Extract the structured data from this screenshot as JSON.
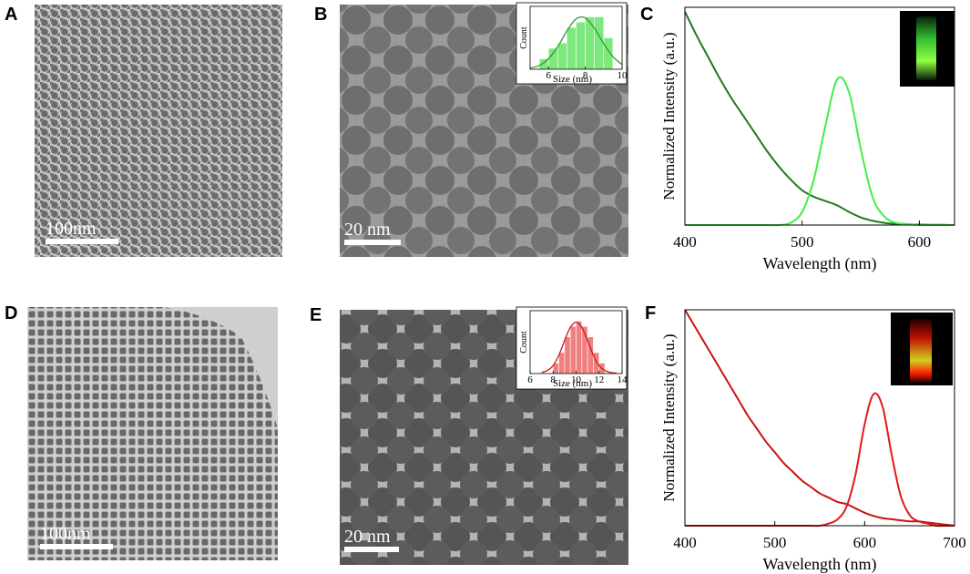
{
  "panels": [
    {
      "label": "A",
      "scale_bar": "100nm"
    },
    {
      "label": "B",
      "scale_bar": "20 nm"
    },
    {
      "label": "C"
    },
    {
      "label": "D",
      "scale_bar": "100nm"
    },
    {
      "label": "E",
      "scale_bar": "20 nm"
    },
    {
      "label": "F"
    }
  ],
  "chart_data": [
    {
      "type": "histogram",
      "xlabel": "Size (nm)",
      "ylabel": "Count",
      "bins": [
        5.5,
        6,
        6.5,
        7,
        7.5,
        8,
        8.5,
        9,
        9.5
      ],
      "values": [
        2,
        4,
        5,
        8,
        9,
        10,
        10,
        6
      ],
      "color": "#7de87d",
      "xlim": [
        5,
        10
      ],
      "xticks": [
        6,
        8,
        10
      ],
      "ylim": [
        0,
        12
      ],
      "fit": {
        "color": "#2e9e2e",
        "x": [
          5,
          5.5,
          6,
          6.5,
          7,
          7.5,
          8,
          8.5,
          9,
          9.5,
          10
        ],
        "values": [
          0.2,
          0.7,
          2,
          4.3,
          7.3,
          9.6,
          9.8,
          7.8,
          4.9,
          2.4,
          0.9
        ]
      }
    },
    {
      "type": "line",
      "xlabel": "Wavelength (nm)",
      "ylabel": "Normalized Intensity (a.u.)",
      "x": [
        400,
        410,
        420,
        430,
        440,
        450,
        460,
        470,
        480,
        490,
        500,
        510,
        520,
        530,
        540,
        550,
        560,
        570,
        580,
        590,
        600,
        610,
        620,
        630
      ],
      "series": [
        {
          "color": "#1f7a1f",
          "values": [
            0.98,
            0.87,
            0.77,
            0.67,
            0.58,
            0.5,
            0.42,
            0.34,
            0.27,
            0.21,
            0.16,
            0.13,
            0.11,
            0.09,
            0.06,
            0.035,
            0.02,
            0.01,
            0.005,
            0.003,
            0.002,
            0.001,
            0.001,
            0
          ]
        },
        {
          "color": "#44ee44",
          "values": [
            0,
            0,
            0,
            0,
            0,
            0,
            0,
            0,
            0,
            0.01,
            0.06,
            0.21,
            0.46,
            0.67,
            0.61,
            0.35,
            0.13,
            0.04,
            0.01,
            0.005,
            0,
            0,
            0,
            0
          ]
        }
      ],
      "xlim": [
        400,
        630
      ],
      "xticks": [
        400,
        500,
        600
      ],
      "ylim": [
        0,
        1
      ]
    },
    {
      "type": "histogram",
      "xlabel": "Size (nm)",
      "ylabel": "Count",
      "bins": [
        8,
        8.5,
        9,
        9.5,
        10,
        10.5,
        11,
        11.5,
        12,
        12.5
      ],
      "values": [
        2,
        4,
        7,
        9,
        10,
        9,
        7,
        4,
        2
      ],
      "color": "#f08080",
      "xlim": [
        6,
        14
      ],
      "xticks": [
        6,
        8,
        10,
        12,
        14
      ],
      "ylim": [
        0,
        12
      ],
      "fit": {
        "color": "#d01818",
        "x": [
          7,
          7.5,
          8,
          8.5,
          9,
          9.5,
          10,
          10.5,
          11,
          11.5,
          12,
          12.5,
          13,
          13.5
        ],
        "values": [
          0.2,
          0.6,
          1.5,
          3.5,
          6.3,
          8.8,
          9.8,
          8.8,
          6.3,
          3.5,
          1.5,
          0.6,
          0.2,
          0.1
        ]
      }
    },
    {
      "type": "line",
      "xlabel": "Wavelength (nm)",
      "ylabel": "Normalized Intensity (a.u.)",
      "x": [
        400,
        410,
        420,
        430,
        440,
        450,
        460,
        470,
        480,
        490,
        500,
        510,
        520,
        530,
        540,
        550,
        560,
        570,
        580,
        590,
        600,
        610,
        620,
        630,
        640,
        650,
        660,
        670,
        680,
        690,
        700
      ],
      "series": [
        {
          "color": "#cc1111",
          "values": [
            1.0,
            0.93,
            0.86,
            0.79,
            0.72,
            0.65,
            0.58,
            0.51,
            0.45,
            0.39,
            0.34,
            0.29,
            0.25,
            0.21,
            0.18,
            0.15,
            0.13,
            0.11,
            0.1,
            0.08,
            0.06,
            0.045,
            0.035,
            0.03,
            0.025,
            0.02,
            0.02,
            0.015,
            0.01,
            0.005,
            0
          ]
        },
        {
          "color": "#e01a1a",
          "values": [
            0,
            0,
            0,
            0,
            0,
            0,
            0,
            0,
            0,
            0,
            0,
            0,
            0,
            0,
            0,
            0,
            0.01,
            0.03,
            0.09,
            0.24,
            0.47,
            0.61,
            0.55,
            0.33,
            0.14,
            0.05,
            0.02,
            0.01,
            0,
            0,
            0
          ]
        }
      ],
      "xlim": [
        400,
        700
      ],
      "xticks": [
        400,
        500,
        600,
        700
      ],
      "ylim": [
        0,
        1
      ]
    }
  ]
}
